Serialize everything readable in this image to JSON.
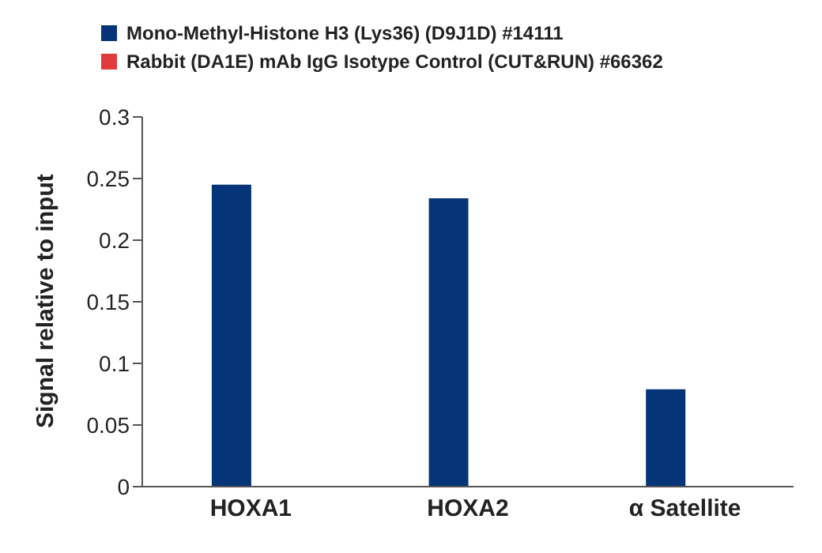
{
  "chart_data": {
    "type": "bar",
    "ylabel": "Signal relative to input",
    "categories": [
      "HOXA1",
      "HOXA2",
      "α Satellite"
    ],
    "series": [
      {
        "name": "Mono-Methyl-Histone H3 (Lys36) (D9J1D) #14111",
        "color": "#063478",
        "values": [
          0.245,
          0.234,
          0.079
        ]
      },
      {
        "name": "Rabbit (DA1E) mAb IgG Isotype Control (CUT&RUN) #66362",
        "color": "#e03a3e",
        "values": [
          0,
          0,
          0
        ]
      }
    ],
    "ylim": [
      0,
      0.3
    ],
    "yticks": [
      0,
      0.05,
      0.1,
      0.15,
      0.2,
      0.25,
      0.3
    ],
    "grid": false,
    "legend": "top"
  }
}
